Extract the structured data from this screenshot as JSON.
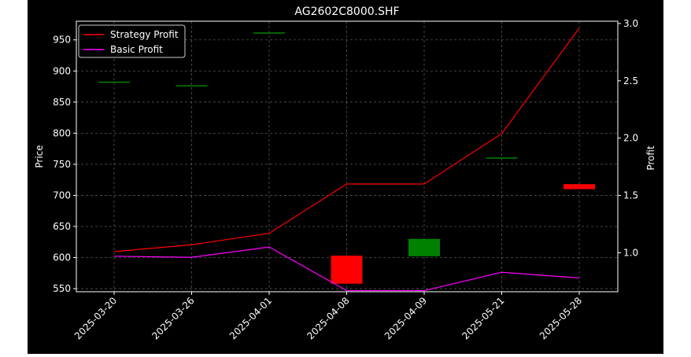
{
  "chart_data": {
    "type": "candlestick+line",
    "title": "AG2602C8000.SHF",
    "xlabel": "",
    "ylabel_left": "Price",
    "ylabel_right": "Profit",
    "categories": [
      "2025-03-20",
      "2025-03-26",
      "2025-04-01",
      "2025-04-08",
      "2025-04-09",
      "2025-05-21",
      "2025-05-28"
    ],
    "ylim_left": [
      545,
      980
    ],
    "ylim_right": [
      0.66,
      3.02
    ],
    "yticks_left": [
      550,
      600,
      650,
      700,
      750,
      800,
      850,
      900,
      950
    ],
    "yticks_right": [
      1.0,
      1.5,
      2.0,
      2.5,
      3.0
    ],
    "grid": true,
    "legend_position": "top-left",
    "candles": [
      {
        "date": "2025-03-20",
        "open": 882,
        "close": 882,
        "high": 882,
        "low": 882
      },
      {
        "date": "2025-03-26",
        "open": 876,
        "close": 876,
        "high": 876,
        "low": 876
      },
      {
        "date": "2025-04-01",
        "open": 961,
        "close": 961,
        "high": 961,
        "low": 961
      },
      {
        "date": "2025-04-08",
        "open": 603,
        "close": 558,
        "high": 603,
        "low": 558
      },
      {
        "date": "2025-04-09",
        "open": 602,
        "close": 630,
        "high": 630,
        "low": 602
      },
      {
        "date": "2025-05-21",
        "open": 760,
        "close": 760,
        "high": 760,
        "low": 760
      },
      {
        "date": "2025-05-28",
        "open": 718,
        "close": 710,
        "high": 718,
        "low": 710
      }
    ],
    "series": [
      {
        "name": "Strategy Profit",
        "axis": "right",
        "color": "#ff0000",
        "values": [
          1.01,
          1.07,
          1.17,
          1.6,
          1.6,
          2.04,
          2.96
        ]
      },
      {
        "name": "Basic Profit",
        "axis": "right",
        "color": "#ff00ff",
        "values": [
          0.97,
          0.96,
          1.05,
          0.67,
          0.67,
          0.83,
          0.78
        ]
      }
    ],
    "colors": {
      "background": "#000000",
      "foreground": "#ffffff",
      "grid": "#7a7a7a",
      "up": "#008000",
      "down": "#ff0000"
    }
  }
}
